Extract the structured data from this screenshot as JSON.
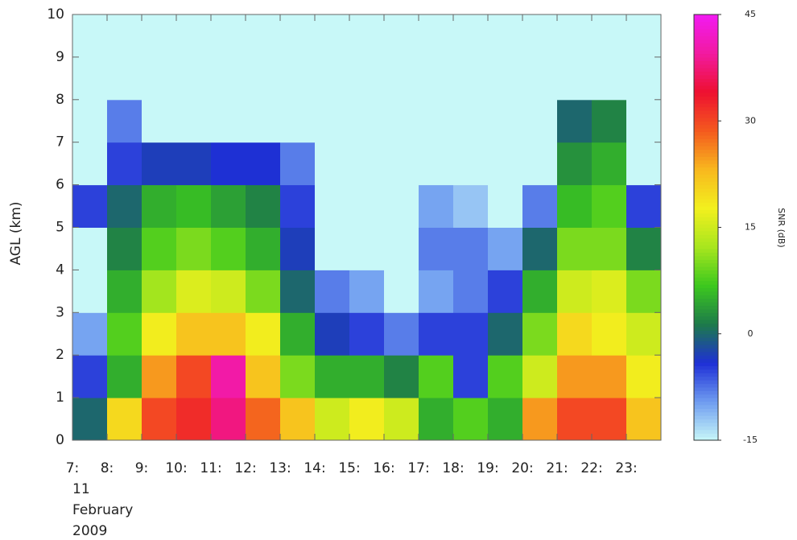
{
  "chart_data": {
    "type": "heatmap",
    "y_label": "AGL (km)",
    "date_label": [
      "11",
      "February",
      "2009"
    ],
    "colorbar_label": "SNR (dB)",
    "x": [
      7,
      8,
      9,
      10,
      11,
      12,
      13,
      14,
      15,
      16,
      17,
      18,
      19,
      20,
      21,
      22,
      23
    ],
    "y": [
      0,
      1,
      2,
      3,
      4,
      5,
      6,
      7,
      8,
      9
    ],
    "xlim": [
      7,
      24
    ],
    "ylim": [
      0,
      10
    ],
    "xticks": [
      {
        "value": 7,
        "label": "7:"
      },
      {
        "value": 8,
        "label": "8:"
      },
      {
        "value": 9,
        "label": "9:"
      },
      {
        "value": 10,
        "label": "10:"
      },
      {
        "value": 11,
        "label": "11:"
      },
      {
        "value": 12,
        "label": "12:"
      },
      {
        "value": 13,
        "label": "13:"
      },
      {
        "value": 14,
        "label": "14:"
      },
      {
        "value": 15,
        "label": "15:"
      },
      {
        "value": 16,
        "label": "16:"
      },
      {
        "value": 17,
        "label": "17:"
      },
      {
        "value": 18,
        "label": "18:"
      },
      {
        "value": 19,
        "label": "19:"
      },
      {
        "value": 20,
        "label": "20:"
      },
      {
        "value": 21,
        "label": "21:"
      },
      {
        "value": 22,
        "label": "22:"
      },
      {
        "value": 23,
        "label": "23:"
      }
    ],
    "yticks": [
      0,
      1,
      2,
      3,
      4,
      5,
      6,
      7,
      8,
      9,
      10
    ],
    "zlim": [
      -15,
      45
    ],
    "zticks": [
      -15,
      0,
      15,
      30,
      45
    ],
    "colors": [
      "#c8f8f8",
      "#6f9cf0",
      "#1e2fd6",
      "#1d7a4a",
      "#3cc81e",
      "#a8e61e",
      "#f2f01e",
      "#f8b81e",
      "#f45a1e",
      "#ee1030",
      "#f21aa0",
      "#f21af2"
    ],
    "values": [
      [
        0,
        -5,
        -10,
        -15,
        -15,
        -5,
        -15,
        -15,
        -15,
        -15
      ],
      [
        20,
        5,
        8,
        5,
        2,
        0,
        -5,
        -8,
        -15,
        -15
      ],
      [
        30,
        25,
        18,
        12,
        8,
        5,
        -3,
        -15,
        -15,
        -15
      ],
      [
        32,
        30,
        22,
        16,
        10,
        6,
        -3,
        -15,
        -15,
        -15
      ],
      [
        38,
        40,
        22,
        15,
        8,
        4,
        -4,
        -15,
        -15,
        -15
      ],
      [
        28,
        22,
        18,
        10,
        5,
        2,
        -4,
        -15,
        -15,
        -15
      ],
      [
        22,
        10,
        5,
        0,
        -3,
        -5,
        -8,
        -15,
        -15,
        -15
      ],
      [
        15,
        5,
        -3,
        -8,
        -15,
        -15,
        -15,
        -15,
        -15,
        -15
      ],
      [
        18,
        5,
        -5,
        -10,
        -15,
        -15,
        -15,
        -15,
        -15,
        -15
      ],
      [
        15,
        2,
        -8,
        -15,
        -15,
        -15,
        -15,
        -15,
        -15,
        -15
      ],
      [
        5,
        8,
        -5,
        -10,
        -8,
        -10,
        -15,
        -15,
        -15,
        -15
      ],
      [
        8,
        -5,
        -5,
        -8,
        -8,
        -12,
        -15,
        -15,
        -15,
        -15
      ],
      [
        5,
        8,
        0,
        -5,
        -10,
        -15,
        -15,
        -15,
        -15,
        -15
      ],
      [
        25,
        15,
        10,
        5,
        0,
        -8,
        -15,
        -15,
        -15,
        -15
      ],
      [
        30,
        25,
        20,
        15,
        10,
        6,
        3,
        0,
        -15,
        -15
      ],
      [
        30,
        25,
        18,
        16,
        10,
        8,
        5,
        2,
        -15,
        -15
      ],
      [
        22,
        18,
        15,
        10,
        2,
        -5,
        -15,
        -15,
        -15,
        -15
      ]
    ]
  }
}
